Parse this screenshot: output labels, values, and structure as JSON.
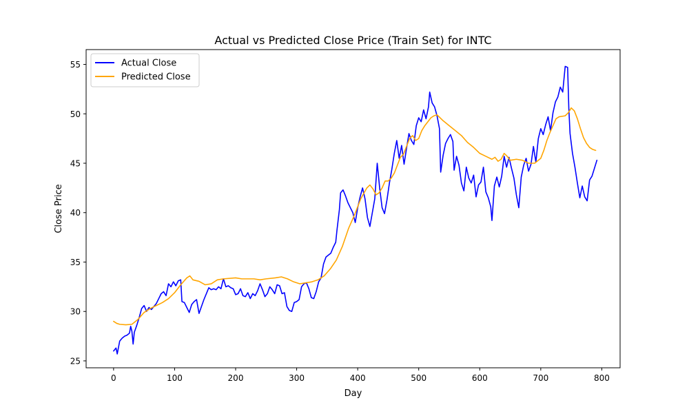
{
  "chart_data": {
    "type": "line",
    "title": "Actual vs Predicted Close Price (Train Set) for INTC",
    "xlabel": "Day",
    "ylabel": "Close Price",
    "xlim": [
      -45,
      830
    ],
    "ylim": [
      24.3,
      56.5
    ],
    "x_ticks": [
      0,
      100,
      200,
      300,
      400,
      500,
      600,
      700,
      800
    ],
    "y_ticks": [
      25,
      30,
      35,
      40,
      45,
      50,
      55
    ],
    "grid": false,
    "legend_position": "top-left",
    "series": [
      {
        "name": "Actual Close",
        "color": "#0000ff",
        "points": [
          [
            0,
            26.0
          ],
          [
            4,
            26.3
          ],
          [
            6,
            25.7
          ],
          [
            10,
            27.0
          ],
          [
            14,
            27.3
          ],
          [
            18,
            27.5
          ],
          [
            22,
            27.6
          ],
          [
            26,
            27.8
          ],
          [
            28,
            28.5
          ],
          [
            30,
            28.0
          ],
          [
            32,
            26.7
          ],
          [
            34,
            27.9
          ],
          [
            38,
            28.6
          ],
          [
            42,
            29.4
          ],
          [
            46,
            30.3
          ],
          [
            50,
            30.6
          ],
          [
            54,
            30.0
          ],
          [
            58,
            30.4
          ],
          [
            62,
            30.2
          ],
          [
            66,
            30.5
          ],
          [
            70,
            30.8
          ],
          [
            74,
            31.3
          ],
          [
            78,
            31.8
          ],
          [
            82,
            32.0
          ],
          [
            86,
            31.6
          ],
          [
            90,
            32.8
          ],
          [
            94,
            32.5
          ],
          [
            98,
            33.0
          ],
          [
            102,
            32.6
          ],
          [
            106,
            33.1
          ],
          [
            110,
            33.2
          ],
          [
            112,
            31.0
          ],
          [
            116,
            30.9
          ],
          [
            120,
            30.4
          ],
          [
            124,
            29.9
          ],
          [
            128,
            30.7
          ],
          [
            132,
            31.0
          ],
          [
            136,
            31.2
          ],
          [
            140,
            29.8
          ],
          [
            144,
            30.5
          ],
          [
            148,
            31.2
          ],
          [
            152,
            31.8
          ],
          [
            156,
            32.4
          ],
          [
            160,
            32.2
          ],
          [
            164,
            32.3
          ],
          [
            168,
            32.2
          ],
          [
            172,
            32.5
          ],
          [
            176,
            32.3
          ],
          [
            180,
            33.3
          ],
          [
            184,
            32.5
          ],
          [
            188,
            32.6
          ],
          [
            192,
            32.4
          ],
          [
            196,
            32.3
          ],
          [
            200,
            31.7
          ],
          [
            204,
            31.8
          ],
          [
            208,
            32.3
          ],
          [
            212,
            31.6
          ],
          [
            216,
            31.5
          ],
          [
            220,
            31.9
          ],
          [
            224,
            31.3
          ],
          [
            228,
            31.8
          ],
          [
            232,
            31.6
          ],
          [
            236,
            32.1
          ],
          [
            240,
            32.8
          ],
          [
            244,
            32.2
          ],
          [
            248,
            31.5
          ],
          [
            252,
            31.8
          ],
          [
            256,
            32.5
          ],
          [
            260,
            32.2
          ],
          [
            264,
            31.8
          ],
          [
            268,
            32.7
          ],
          [
            272,
            32.6
          ],
          [
            276,
            31.8
          ],
          [
            280,
            31.9
          ],
          [
            284,
            30.5
          ],
          [
            288,
            30.1
          ],
          [
            292,
            30.0
          ],
          [
            296,
            30.9
          ],
          [
            300,
            31.0
          ],
          [
            304,
            31.2
          ],
          [
            308,
            32.5
          ],
          [
            312,
            32.8
          ],
          [
            316,
            32.9
          ],
          [
            320,
            32.3
          ],
          [
            324,
            31.4
          ],
          [
            328,
            31.3
          ],
          [
            332,
            32.0
          ],
          [
            336,
            33.0
          ],
          [
            340,
            33.4
          ],
          [
            344,
            34.8
          ],
          [
            348,
            35.5
          ],
          [
            352,
            35.7
          ],
          [
            356,
            35.9
          ],
          [
            360,
            36.5
          ],
          [
            364,
            37.0
          ],
          [
            366,
            38.2
          ],
          [
            370,
            40.3
          ],
          [
            372,
            42.0
          ],
          [
            376,
            42.3
          ],
          [
            380,
            41.7
          ],
          [
            384,
            41.0
          ],
          [
            388,
            40.5
          ],
          [
            392,
            40.0
          ],
          [
            396,
            39.0
          ],
          [
            400,
            40.5
          ],
          [
            404,
            41.6
          ],
          [
            408,
            42.5
          ],
          [
            412,
            41.4
          ],
          [
            416,
            39.5
          ],
          [
            420,
            38.6
          ],
          [
            424,
            40.0
          ],
          [
            428,
            41.4
          ],
          [
            432,
            45.0
          ],
          [
            436,
            42.5
          ],
          [
            440,
            40.5
          ],
          [
            444,
            39.9
          ],
          [
            448,
            41.3
          ],
          [
            452,
            43.0
          ],
          [
            456,
            44.4
          ],
          [
            460,
            46.0
          ],
          [
            464,
            47.3
          ],
          [
            468,
            45.5
          ],
          [
            472,
            46.8
          ],
          [
            476,
            44.9
          ],
          [
            480,
            46.5
          ],
          [
            484,
            48.0
          ],
          [
            488,
            47.3
          ],
          [
            492,
            46.9
          ],
          [
            496,
            48.8
          ],
          [
            500,
            49.6
          ],
          [
            504,
            49.2
          ],
          [
            508,
            50.4
          ],
          [
            512,
            49.5
          ],
          [
            516,
            50.7
          ],
          [
            518,
            52.2
          ],
          [
            522,
            51.1
          ],
          [
            526,
            50.7
          ],
          [
            530,
            49.8
          ],
          [
            534,
            48.5
          ],
          [
            536,
            44.1
          ],
          [
            540,
            45.8
          ],
          [
            544,
            47.0
          ],
          [
            548,
            47.5
          ],
          [
            552,
            47.9
          ],
          [
            556,
            47.2
          ],
          [
            558,
            44.3
          ],
          [
            562,
            45.7
          ],
          [
            566,
            44.8
          ],
          [
            570,
            43.0
          ],
          [
            574,
            42.2
          ],
          [
            578,
            44.6
          ],
          [
            582,
            43.5
          ],
          [
            586,
            43.0
          ],
          [
            590,
            43.8
          ],
          [
            594,
            41.6
          ],
          [
            598,
            42.8
          ],
          [
            602,
            43.1
          ],
          [
            606,
            44.6
          ],
          [
            610,
            42.1
          ],
          [
            614,
            41.5
          ],
          [
            618,
            40.6
          ],
          [
            620,
            39.2
          ],
          [
            624,
            42.7
          ],
          [
            628,
            43.6
          ],
          [
            632,
            42.6
          ],
          [
            636,
            43.7
          ],
          [
            640,
            45.7
          ],
          [
            644,
            44.6
          ],
          [
            648,
            45.6
          ],
          [
            652,
            44.5
          ],
          [
            656,
            43.5
          ],
          [
            660,
            41.8
          ],
          [
            664,
            40.5
          ],
          [
            668,
            43.6
          ],
          [
            672,
            44.8
          ],
          [
            676,
            45.5
          ],
          [
            680,
            44.2
          ],
          [
            684,
            44.9
          ],
          [
            688,
            46.7
          ],
          [
            692,
            45.1
          ],
          [
            696,
            47.5
          ],
          [
            700,
            48.5
          ],
          [
            704,
            47.9
          ],
          [
            708,
            48.9
          ],
          [
            712,
            49.7
          ],
          [
            716,
            48.3
          ],
          [
            720,
            50.1
          ],
          [
            724,
            51.2
          ],
          [
            728,
            51.7
          ],
          [
            732,
            52.7
          ],
          [
            736,
            52.2
          ],
          [
            740,
            54.8
          ],
          [
            744,
            54.7
          ],
          [
            746,
            50.5
          ],
          [
            748,
            48.0
          ],
          [
            752,
            46.0
          ],
          [
            756,
            44.6
          ],
          [
            760,
            43.0
          ],
          [
            764,
            41.5
          ],
          [
            768,
            42.7
          ],
          [
            772,
            41.6
          ],
          [
            776,
            41.2
          ],
          [
            780,
            43.3
          ],
          [
            784,
            43.7
          ],
          [
            788,
            44.5
          ],
          [
            792,
            45.3
          ]
        ]
      },
      {
        "name": "Predicted Close",
        "color": "#ffa500",
        "points": [
          [
            0,
            29.0
          ],
          [
            5,
            28.8
          ],
          [
            10,
            28.7
          ],
          [
            20,
            28.65
          ],
          [
            30,
            28.7
          ],
          [
            40,
            29.2
          ],
          [
            50,
            29.9
          ],
          [
            60,
            30.3
          ],
          [
            70,
            30.6
          ],
          [
            80,
            30.9
          ],
          [
            90,
            31.3
          ],
          [
            100,
            31.9
          ],
          [
            110,
            32.7
          ],
          [
            120,
            33.4
          ],
          [
            125,
            33.6
          ],
          [
            130,
            33.2
          ],
          [
            140,
            33.05
          ],
          [
            150,
            32.7
          ],
          [
            160,
            32.8
          ],
          [
            170,
            33.2
          ],
          [
            180,
            33.3
          ],
          [
            200,
            33.4
          ],
          [
            210,
            33.3
          ],
          [
            230,
            33.3
          ],
          [
            240,
            33.2
          ],
          [
            250,
            33.3
          ],
          [
            265,
            33.4
          ],
          [
            275,
            33.5
          ],
          [
            285,
            33.3
          ],
          [
            295,
            33.0
          ],
          [
            305,
            32.8
          ],
          [
            315,
            32.9
          ],
          [
            325,
            33.0
          ],
          [
            335,
            33.2
          ],
          [
            345,
            33.6
          ],
          [
            355,
            34.3
          ],
          [
            365,
            35.2
          ],
          [
            375,
            36.6
          ],
          [
            385,
            38.4
          ],
          [
            395,
            39.8
          ],
          [
            405,
            41.4
          ],
          [
            415,
            42.5
          ],
          [
            420,
            42.8
          ],
          [
            425,
            42.4
          ],
          [
            430,
            41.8
          ],
          [
            435,
            42.0
          ],
          [
            440,
            42.5
          ],
          [
            445,
            43.2
          ],
          [
            450,
            43.2
          ],
          [
            455,
            43.5
          ],
          [
            460,
            44.0
          ],
          [
            465,
            44.8
          ],
          [
            470,
            45.6
          ],
          [
            475,
            45.9
          ],
          [
            480,
            46.7
          ],
          [
            485,
            47.5
          ],
          [
            490,
            47.8
          ],
          [
            495,
            47.3
          ],
          [
            500,
            47.5
          ],
          [
            505,
            48.3
          ],
          [
            510,
            48.8
          ],
          [
            515,
            49.2
          ],
          [
            520,
            49.6
          ],
          [
            525,
            49.8
          ],
          [
            530,
            49.9
          ],
          [
            540,
            49.3
          ],
          [
            550,
            48.8
          ],
          [
            560,
            48.3
          ],
          [
            570,
            47.8
          ],
          [
            580,
            47.1
          ],
          [
            590,
            46.6
          ],
          [
            600,
            46.0
          ],
          [
            610,
            45.7
          ],
          [
            620,
            45.4
          ],
          [
            625,
            45.6
          ],
          [
            630,
            45.2
          ],
          [
            635,
            45.4
          ],
          [
            640,
            46.0
          ],
          [
            645,
            45.7
          ],
          [
            650,
            45.3
          ],
          [
            660,
            45.4
          ],
          [
            670,
            45.3
          ],
          [
            680,
            45.0
          ],
          [
            690,
            45.0
          ],
          [
            700,
            45.5
          ],
          [
            705,
            46.3
          ],
          [
            710,
            47.3
          ],
          [
            715,
            48.1
          ],
          [
            720,
            48.8
          ],
          [
            725,
            49.5
          ],
          [
            730,
            49.7
          ],
          [
            740,
            49.8
          ],
          [
            745,
            50.1
          ],
          [
            750,
            50.6
          ],
          [
            755,
            50.3
          ],
          [
            760,
            49.5
          ],
          [
            765,
            48.5
          ],
          [
            770,
            47.6
          ],
          [
            775,
            47.0
          ],
          [
            780,
            46.6
          ],
          [
            785,
            46.4
          ],
          [
            790,
            46.3
          ]
        ]
      }
    ]
  }
}
